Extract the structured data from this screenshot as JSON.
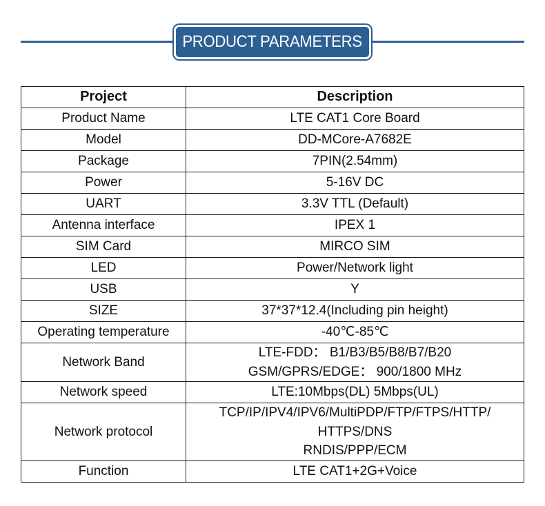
{
  "header": {
    "title": "PRODUCT PARAMETERS"
  },
  "table": {
    "columns": [
      "Project",
      "Description"
    ],
    "rows": [
      {
        "project": "Product Name",
        "description": [
          "LTE CAT1 Core Board"
        ]
      },
      {
        "project": "Model",
        "description": [
          "DD-MCore-A7682E"
        ]
      },
      {
        "project": "Package",
        "description": [
          "7PIN(2.54mm)"
        ]
      },
      {
        "project": "Power",
        "description": [
          "5-16V DC"
        ]
      },
      {
        "project": "UART",
        "description": [
          "3.3V TTL (Default)"
        ]
      },
      {
        "project": "Antenna interface",
        "description": [
          "IPEX 1"
        ]
      },
      {
        "project": "SIM Card",
        "description": [
          "MIRCO SIM"
        ]
      },
      {
        "project": "LED",
        "description": [
          "Power/Network light"
        ]
      },
      {
        "project": "USB",
        "description": [
          "Y"
        ]
      },
      {
        "project": "SIZE",
        "description": [
          "37*37*12.4(Including pin height)"
        ]
      },
      {
        "project": "Operating temperature",
        "description": [
          "-40℃-85℃"
        ]
      },
      {
        "project": "Network Band",
        "description": [
          "LTE-FDD： B1/B3/B5/B8/B7/B20",
          "GSM/GPRS/EDGE： 900/1800 MHz"
        ]
      },
      {
        "project": "Network speed",
        "description": [
          "LTE:10Mbps(DL)  5Mbps(UL)"
        ]
      },
      {
        "project": "Network protocol",
        "description": [
          "TCP/IP/IPV4/IPV6/MultiPDP/FTP/FTPS/HTTP/",
          "HTTPS/DNS",
          "RNDIS/PPP/ECM"
        ]
      },
      {
        "project": "Function",
        "description": [
          "LTE CAT1+2G+Voice"
        ]
      }
    ]
  }
}
